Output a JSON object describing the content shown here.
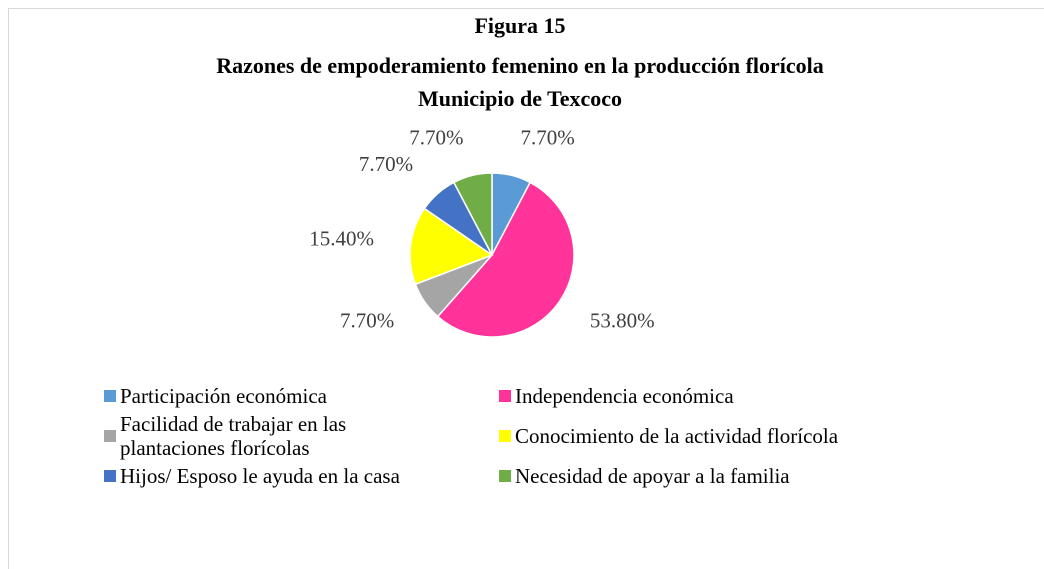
{
  "chart_data": {
    "type": "pie",
    "title": "Figura 15",
    "subtitle": [
      "Razones de empoderamiento femenino en la producción florícola",
      "Municipio de Texcoco"
    ],
    "categories": [
      "Participación económica",
      "Independencia económica",
      "Facilidad de trabajar en las plantaciones florícolas",
      "Conocimiento de la actividad florícola",
      "Hijos/ Esposo le ayuda en la casa",
      "Necesidad de apoyar a la familia"
    ],
    "values": [
      7.7,
      53.8,
      7.7,
      15.4,
      7.7,
      7.7
    ],
    "value_labels": [
      "7.70%",
      "53.80%",
      "7.70%",
      "15.40%",
      "7.70%",
      "7.70%"
    ],
    "colors": [
      "#5b9bd5",
      "#ff3399",
      "#a5a5a5",
      "#ffff00",
      "#4472c4",
      "#70ad47"
    ],
    "legend": "bottom"
  }
}
